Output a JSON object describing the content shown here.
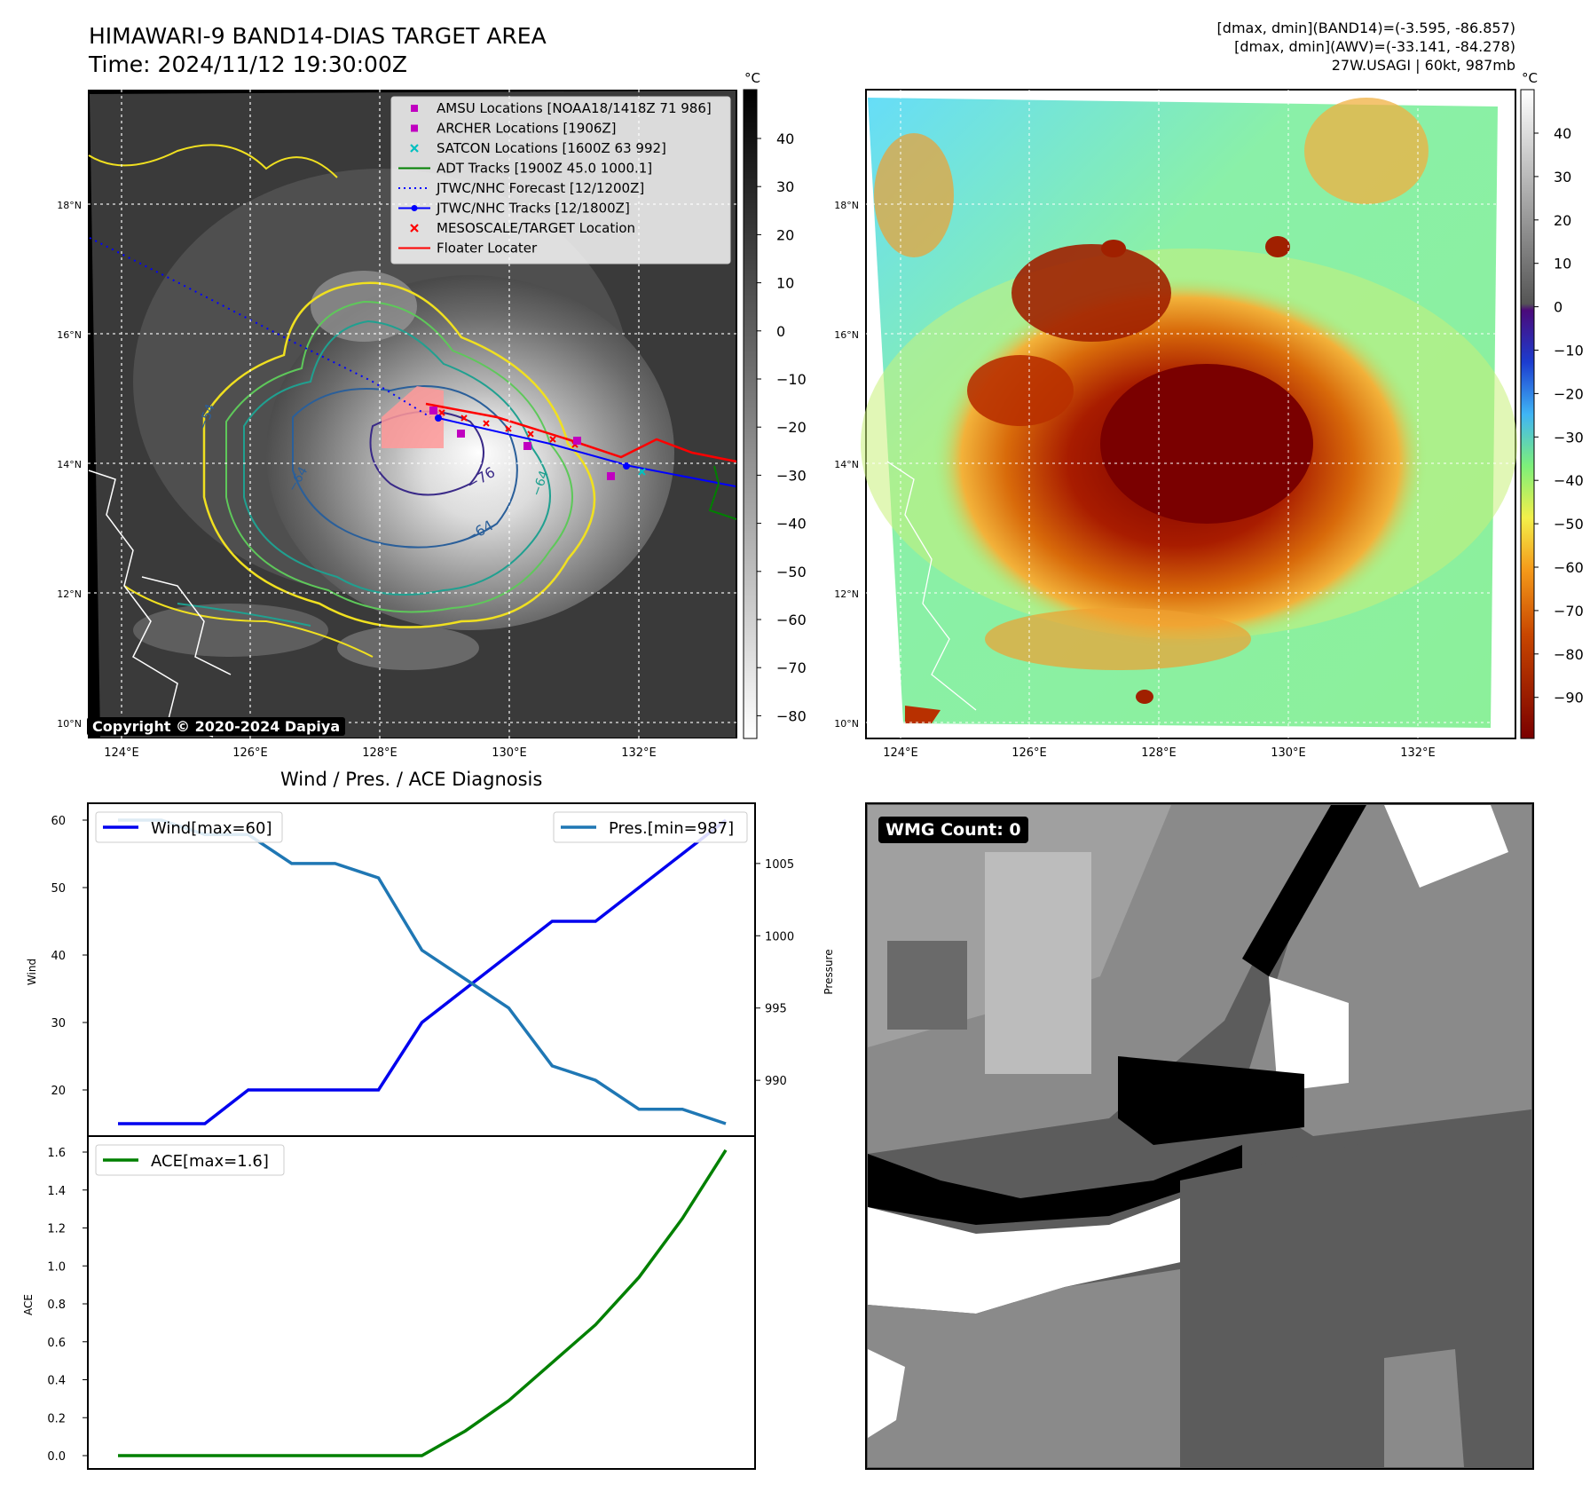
{
  "header": {
    "title_line1": "HIMAWARI-9 BAND14-DIAS TARGET AREA",
    "title_line2": "Time: 2024/11/12 19:30:00Z",
    "info_line1": "[dmax, dmin](BAND14)=(-3.595, -86.857)",
    "info_line2": "[dmax, dmin](AWV)=(-33.141, -84.278)",
    "info_line3": "27W.USAGI | 60kt, 987mb"
  },
  "map": {
    "lon_ticks": [
      "124°E",
      "126°E",
      "128°E",
      "130°E",
      "132°E"
    ],
    "lat_ticks": [
      "18°N",
      "16°N",
      "14°N",
      "12°N",
      "10°N"
    ],
    "copyright": "Copyright © 2020-2024 Dapiya",
    "contour_labels": [
      "−54",
      "−64",
      "−76",
      "−64",
      "−64"
    ],
    "legend": [
      {
        "label": "AMSU Locations [NOAA18/1418Z 71 986]",
        "marker": "square",
        "color": "#c000c0"
      },
      {
        "label": "ARCHER Locations [1906Z]",
        "marker": "square",
        "color": "#c000c0"
      },
      {
        "label": "SATCON Locations [1600Z 63 992]",
        "marker": "x",
        "color": "#00c0c0"
      },
      {
        "label": "ADT Tracks [1900Z 45.0 1000.1]",
        "marker": "line",
        "color": "#008000"
      },
      {
        "label": "JTWC/NHC Forecast [12/1200Z]",
        "marker": "dotted",
        "color": "#0000ff"
      },
      {
        "label": "JTWC/NHC Tracks [12/1800Z]",
        "marker": "line-dot",
        "color": "#0000ff"
      },
      {
        "label": "MESOSCALE/TARGET Location",
        "marker": "x",
        "color": "#ff0000"
      },
      {
        "label": "Floater Locater",
        "marker": "line",
        "color": "#ff0000"
      }
    ]
  },
  "colorbar_gray": {
    "unit": "°C",
    "ticks": [
      "40",
      "30",
      "20",
      "10",
      "0",
      "−10",
      "−20",
      "−30",
      "−40",
      "−50",
      "−60",
      "−70",
      "−80"
    ]
  },
  "colorbar_color": {
    "unit": "°C",
    "ticks": [
      "40",
      "30",
      "20",
      "10",
      "0",
      "−10",
      "−20",
      "−30",
      "−40",
      "−50",
      "−60",
      "−70",
      "−80",
      "−90"
    ]
  },
  "diagnosis": {
    "title": "Wind / Pres. / ACE Diagnosis",
    "wind_legend": "Wind[max=60]",
    "pres_legend": "Pres.[min=987]",
    "ace_legend": "ACE[max=1.6]",
    "wind_axis_label": "Wind",
    "pres_axis_label": "Pressure",
    "ace_axis_label": "ACE",
    "wind_ticks": [
      "60",
      "50",
      "40",
      "30",
      "20"
    ],
    "pres_ticks": [
      "1005",
      "1000",
      "995",
      "990"
    ],
    "ace_ticks": [
      "1.6",
      "1.4",
      "1.2",
      "1.0",
      "0.8",
      "0.6",
      "0.4",
      "0.2",
      "0.0"
    ]
  },
  "wmg": {
    "label": "WMG Count: 0"
  },
  "chart_data": [
    {
      "type": "line",
      "series": [
        {
          "name": "Wind[max=60]",
          "color": "#0000ee",
          "axis": "left",
          "values": [
            15,
            15,
            15,
            20,
            20,
            20,
            20,
            30,
            35,
            40,
            45,
            45,
            50,
            55,
            60
          ]
        },
        {
          "name": "Pres.[min=987]",
          "color": "#1f77b4",
          "axis": "right",
          "values": [
            1008,
            1008,
            1007,
            1007,
            1005,
            1005,
            1004,
            999,
            997,
            995,
            991,
            990,
            988,
            988,
            987
          ]
        }
      ],
      "ylim_left": [
        15,
        60
      ],
      "ylim_right": [
        987,
        1008
      ]
    },
    {
      "type": "line",
      "series": [
        {
          "name": "ACE[max=1.6]",
          "color": "#008000",
          "values": [
            0,
            0,
            0,
            0,
            0,
            0,
            0,
            0,
            0.13,
            0.29,
            0.49,
            0.69,
            0.94,
            1.25,
            1.61
          ]
        }
      ],
      "ylim": [
        0,
        1.6
      ]
    }
  ]
}
